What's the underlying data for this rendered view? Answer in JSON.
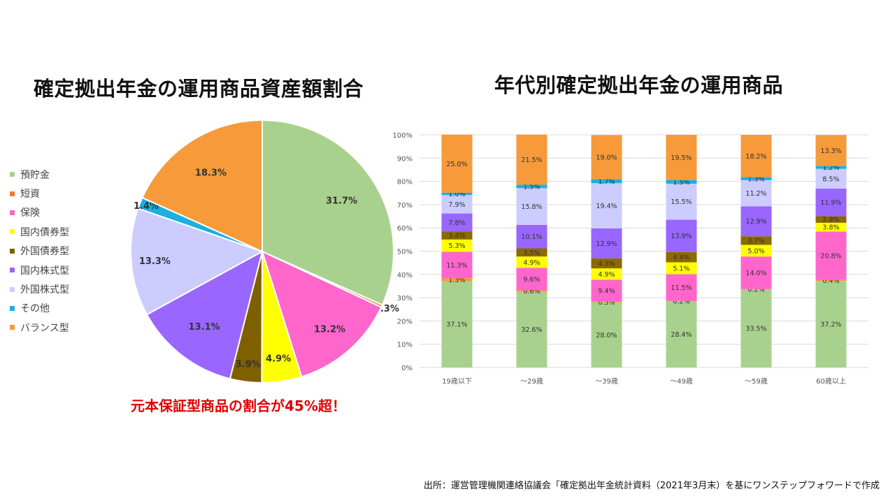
{
  "pie_title": "確定拠出年金の運用商品資産額割合",
  "bar_title": "年代別確定拠出年金の運用商品",
  "note": "元本保証型商品の割合が45%超！",
  "source": "出所：運営管理機関連絡協議会「確定拠出年金統計資料（2021年3月末）を基にワンステップフォワードで作成",
  "chart_data": [
    {
      "type": "pie",
      "title": "確定拠出年金の運用商品資産額割合",
      "legend_position": "left",
      "slices": [
        {
          "label": "預貯金",
          "value": 31.7,
          "display": "31.7%",
          "color": "#a9d18e"
        },
        {
          "label": "短資",
          "value": 0.3,
          "display": "0.3%",
          "color": "#ed7d31"
        },
        {
          "label": "保険",
          "value": 13.2,
          "display": "13.2%",
          "color": "#ff66cc"
        },
        {
          "label": "国内債券型",
          "value": 4.9,
          "display": "4.9%",
          "color": "#ffff00"
        },
        {
          "label": "外国債券型",
          "value": 3.9,
          "display": "3.9%",
          "color": "#7f6000"
        },
        {
          "label": "国内株式型",
          "value": 13.1,
          "display": "13.1%",
          "color": "#9966ff"
        },
        {
          "label": "外国株式型",
          "value": 13.3,
          "display": "13.3%",
          "color": "#ccccff"
        },
        {
          "label": "その他",
          "value": 1.4,
          "display": "1.4%",
          "color": "#1ab0e0"
        },
        {
          "label": "バランス型",
          "value": 18.3,
          "display": "18.3%",
          "color": "#f79a3a"
        }
      ]
    },
    {
      "type": "bar",
      "stacked": true,
      "title": "年代別確定拠出年金の運用商品",
      "categories": [
        "19歳以下",
        "～29歳",
        "～39歳",
        "～49歳",
        "～59歳",
        "60歳以上"
      ],
      "ylim": [
        0,
        100
      ],
      "yticks": [
        "0%",
        "10%",
        "20%",
        "30%",
        "40%",
        "50%",
        "60%",
        "70%",
        "80%",
        "90%",
        "100%"
      ],
      "grid": true,
      "series": [
        {
          "name": "預貯金",
          "color": "#a9d18e",
          "values": [
            37.1,
            32.6,
            28.0,
            28.4,
            33.5,
            37.2
          ],
          "labels": [
            "37.1%",
            "32.6%",
            "28.0%",
            "28.4%",
            "33.5%",
            "37.2%"
          ]
        },
        {
          "name": "短資",
          "color": "#f79a3a",
          "values": [
            1.3,
            0.6,
            0.3,
            0.2,
            0.2,
            0.4
          ],
          "labels": [
            "1.3%",
            "0.6%",
            "0.3%",
            "0.2%",
            "0.2%",
            "0.4%"
          ]
        },
        {
          "name": "保険",
          "color": "#ff66cc",
          "values": [
            11.3,
            9.6,
            9.4,
            11.5,
            14.0,
            20.8
          ],
          "labels": [
            "11.3%",
            "9.6%",
            "9.4%",
            "11.5%",
            "14.0%",
            "20.8%"
          ]
        },
        {
          "name": "国内債券型",
          "color": "#ffff00",
          "values": [
            5.3,
            4.9,
            4.9,
            5.1,
            5.0,
            3.8
          ],
          "labels": [
            "5.3%",
            "4.9%",
            "4.9%",
            "5.1%",
            "5.0%",
            "3.8%"
          ]
        },
        {
          "name": "外国債券型",
          "color": "#8b6a00",
          "values": [
            3.4,
            3.5,
            4.3,
            4.4,
            3.7,
            2.8
          ],
          "labels": [
            "3.4%",
            "3.5%",
            "4.3%",
            "4.4%",
            "3.7%",
            "2.8%"
          ]
        },
        {
          "name": "国内株式型",
          "color": "#9966ff",
          "values": [
            7.8,
            10.1,
            12.9,
            13.9,
            12.9,
            11.9
          ],
          "labels": [
            "7.8%",
            "10.1%",
            "12.9%",
            "13.9%",
            "12.9%",
            "11.9%"
          ]
        },
        {
          "name": "外国株式型",
          "color": "#ccccff",
          "values": [
            7.9,
            15.8,
            19.4,
            15.5,
            11.2,
            8.5
          ],
          "labels": [
            "7.9%",
            "15.8%",
            "19.4%",
            "15.5%",
            "11.2%",
            "8.5%"
          ]
        },
        {
          "name": "その他",
          "color": "#1ab0e0",
          "values": [
            1.0,
            1.5,
            1.7,
            1.5,
            1.3,
            1.2
          ],
          "labels": [
            "1.0%",
            "1.5%",
            "1.7%",
            "1.5%",
            "1.3%",
            "1.2%"
          ]
        },
        {
          "name": "バランス型",
          "color": "#f79a3a",
          "values": [
            25.0,
            21.5,
            19.0,
            19.5,
            18.2,
            13.3
          ],
          "labels": [
            "25.0%",
            "21.5%",
            "19.0%",
            "19.5%",
            "18.2%",
            "13.3%"
          ]
        }
      ]
    }
  ]
}
